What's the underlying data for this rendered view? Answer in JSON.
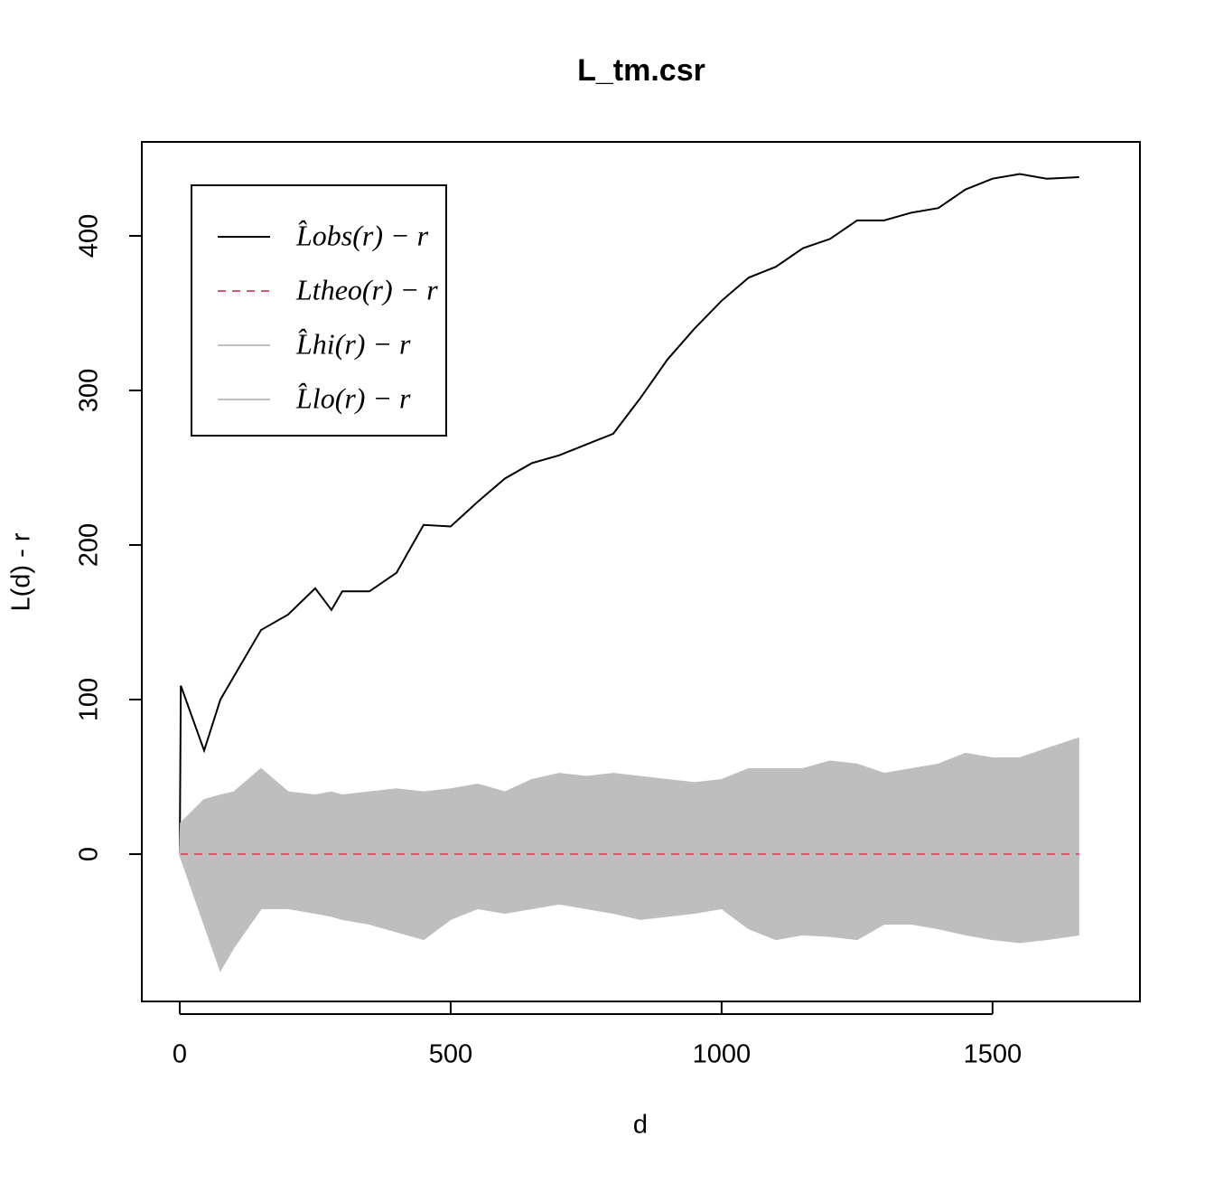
{
  "chart_data": {
    "type": "line",
    "title": "L_tm.csr",
    "x_label": "d",
    "y_label": "L(d) - r",
    "x": [
      0,
      2,
      45,
      75,
      100,
      150,
      200,
      250,
      280,
      300,
      350,
      400,
      450,
      500,
      550,
      600,
      650,
      700,
      750,
      800,
      850,
      900,
      950,
      1000,
      1050,
      1100,
      1150,
      1200,
      1250,
      1300,
      1350,
      1400,
      1450,
      1500,
      1550,
      1600,
      1660
    ],
    "series": [
      {
        "name": "L̂obs(r) − r",
        "color": "#000000",
        "dash": "solid",
        "values": [
          0,
          109,
          67,
          100,
          115,
          145,
          155,
          172,
          158,
          170,
          170,
          182,
          213,
          212,
          228,
          243,
          253,
          258,
          265,
          272,
          295,
          320,
          340,
          358,
          373,
          380,
          392,
          398,
          410,
          410,
          415,
          418,
          430,
          437,
          440,
          437,
          438
        ]
      },
      {
        "name": "Ltheo(r) − r",
        "color": "#df536b",
        "dash": "dashed",
        "values": [
          0,
          0,
          0,
          0,
          0,
          0,
          0,
          0,
          0,
          0,
          0,
          0,
          0,
          0,
          0,
          0,
          0,
          0,
          0,
          0,
          0,
          0,
          0,
          0,
          0,
          0,
          0,
          0,
          0,
          0,
          0,
          0,
          0,
          0,
          0,
          0,
          0
        ]
      },
      {
        "name": "L̂hi(r) − r",
        "color": "#bebebe",
        "dash": "solid",
        "values": [
          0,
          20,
          35,
          38,
          40,
          55,
          40,
          38,
          40,
          38,
          40,
          42,
          40,
          42,
          45,
          40,
          48,
          52,
          50,
          52,
          50,
          48,
          46,
          48,
          55,
          55,
          55,
          60,
          58,
          52,
          55,
          58,
          65,
          62,
          62,
          68,
          75
        ]
      },
      {
        "name": "L̂lo(r) − r",
        "color": "#bebebe",
        "dash": "solid",
        "values": [
          0,
          -2,
          -45,
          -75,
          -60,
          -35,
          -35,
          -38,
          -40,
          -42,
          -45,
          -50,
          -55,
          -42,
          -35,
          -38,
          -35,
          -32,
          -35,
          -38,
          -42,
          -40,
          -38,
          -35,
          -48,
          -55,
          -52,
          -53,
          -55,
          -45,
          -45,
          -48,
          -52,
          -55,
          -57,
          -55,
          -52
        ]
      }
    ],
    "band_fill": "#bebebe",
    "xlim": [
      -70,
      1772
    ],
    "ylim": [
      -95.3,
      460.8
    ],
    "xticks": [
      0,
      500,
      1000,
      1500
    ],
    "yticks": [
      0,
      100,
      200,
      300,
      400
    ],
    "legend": "top-left"
  }
}
